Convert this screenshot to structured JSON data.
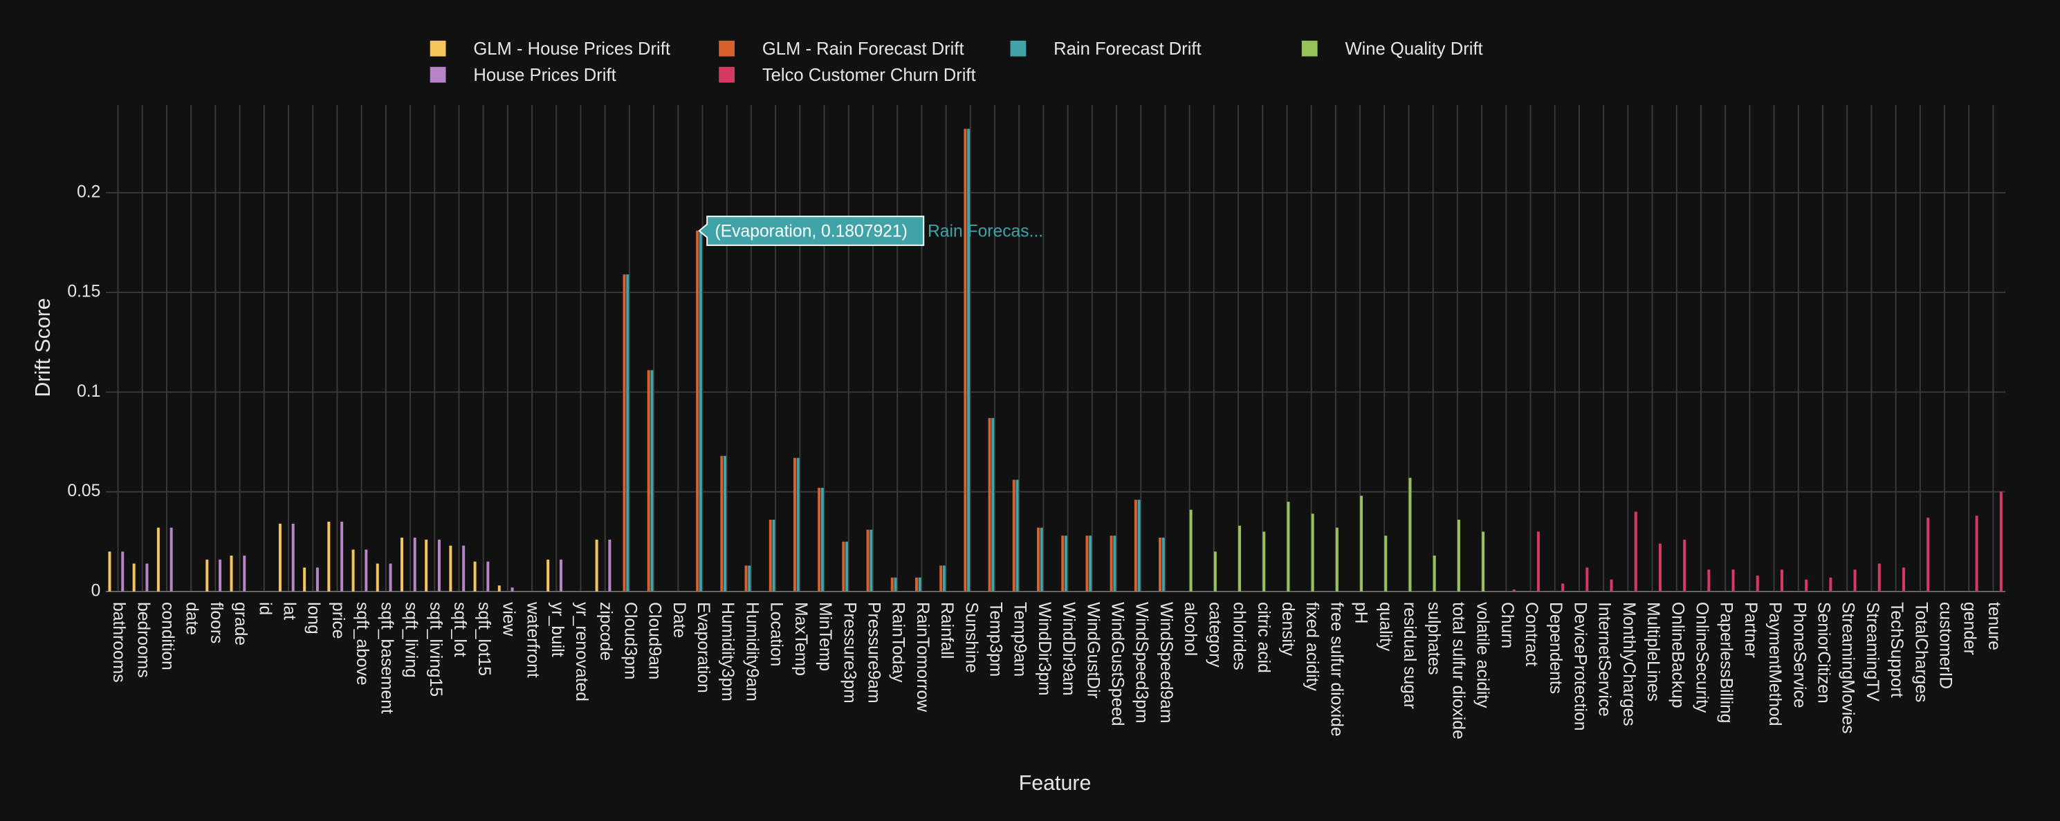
{
  "chart_data": {
    "type": "bar",
    "x_label": "Feature",
    "y_label": "Drift Score",
    "categories": [
      "bathrooms",
      "bedrooms",
      "condition",
      "date",
      "floors",
      "grade",
      "id",
      "lat",
      "long",
      "price",
      "sqft_above",
      "sqft_basement",
      "sqft_living",
      "sqft_living15",
      "sqft_lot",
      "sqft_lot15",
      "view",
      "waterfront",
      "yr_built",
      "yr_renovated",
      "zipcode",
      "Cloud3pm",
      "Cloud9am",
      "Date",
      "Evaporation",
      "Humidity3pm",
      "Humidity9am",
      "Location",
      "MaxTemp",
      "MinTemp",
      "Pressure3pm",
      "Pressure9am",
      "RainToday",
      "RainTomorrow",
      "Rainfall",
      "Sunshine",
      "Temp3pm",
      "Temp9am",
      "WindDir3pm",
      "WindDir9am",
      "WindGustDir",
      "WindGustSpeed",
      "WindSpeed3pm",
      "WindSpeed9am",
      "alcohol",
      "category",
      "chlorides",
      "citric acid",
      "density",
      "fixed acidity",
      "free sulfur dioxide",
      "pH",
      "quality",
      "residual sugar",
      "sulphates",
      "total sulfur dioxide",
      "volatile acidity",
      "Churn",
      "Contract",
      "Dependents",
      "DeviceProtection",
      "InternetService",
      "MonthlyCharges",
      "MultipleLines",
      "OnlineBackup",
      "OnlineSecurity",
      "PaperlessBilling",
      "Partner",
      "PaymentMethod",
      "PhoneService",
      "SeniorCitizen",
      "StreamingMovies",
      "StreamingTV",
      "TechSupport",
      "TotalCharges",
      "customerID",
      "gender",
      "tenure"
    ],
    "series": [
      {
        "name": "GLM - House Prices Drift",
        "color": "#f4c55a",
        "values": [
          0.02,
          0.014,
          0.032,
          0,
          0.016,
          0.018,
          0,
          0.034,
          0.012,
          0.035,
          0.021,
          0.014,
          0.027,
          0.026,
          0.023,
          0.015,
          0.003,
          0,
          0.016,
          0,
          0.026,
          null,
          null,
          null,
          null,
          null,
          null,
          null,
          null,
          null,
          null,
          null,
          null,
          null,
          null,
          null,
          null,
          null,
          null,
          null,
          null,
          null,
          null,
          null,
          null,
          null,
          null,
          null,
          null,
          null,
          null,
          null,
          null,
          null,
          null,
          null,
          null,
          null,
          null,
          null,
          null,
          null,
          null,
          null,
          null,
          null,
          null,
          null,
          null,
          null,
          null,
          null,
          null,
          null,
          null,
          null,
          null,
          null
        ]
      },
      {
        "name": "GLM - Rain Forecast Drift",
        "color": "#d9602f",
        "values": [
          null,
          null,
          null,
          null,
          null,
          null,
          null,
          null,
          null,
          null,
          null,
          null,
          null,
          null,
          null,
          null,
          null,
          null,
          null,
          null,
          null,
          0.159,
          0.111,
          0,
          0.181,
          0.068,
          0.013,
          0.036,
          0.067,
          0.052,
          0.025,
          0.031,
          0.007,
          0.007,
          0.013,
          0.232,
          0.087,
          0.056,
          0.032,
          0.028,
          0.028,
          0.028,
          0.046,
          0.027,
          null,
          null,
          null,
          null,
          null,
          null,
          null,
          null,
          null,
          null,
          null,
          null,
          null,
          null,
          null,
          null,
          null,
          null,
          null,
          null,
          null,
          null,
          null,
          null,
          null,
          null,
          null,
          null,
          null,
          null,
          null,
          null,
          null,
          null
        ]
      },
      {
        "name": "Rain Forecast Drift",
        "color": "#3fa3a8",
        "values": [
          null,
          null,
          null,
          null,
          null,
          null,
          null,
          null,
          null,
          null,
          null,
          null,
          null,
          null,
          null,
          null,
          null,
          null,
          null,
          null,
          null,
          0.159,
          0.111,
          0,
          0.1807921,
          0.068,
          0.013,
          0.036,
          0.067,
          0.052,
          0.025,
          0.031,
          0.007,
          0.007,
          0.013,
          0.232,
          0.087,
          0.056,
          0.032,
          0.028,
          0.028,
          0.028,
          0.046,
          0.027,
          null,
          null,
          null,
          null,
          null,
          null,
          null,
          null,
          null,
          null,
          null,
          null,
          null,
          null,
          null,
          null,
          null,
          null,
          null,
          null,
          null,
          null,
          null,
          null,
          null,
          null,
          null,
          null,
          null,
          null,
          null,
          null,
          null,
          null
        ]
      },
      {
        "name": "Wine Quality Drift",
        "color": "#98c15b",
        "values": [
          null,
          null,
          null,
          null,
          null,
          null,
          null,
          null,
          null,
          null,
          null,
          null,
          null,
          null,
          null,
          null,
          null,
          null,
          null,
          null,
          null,
          null,
          null,
          null,
          null,
          null,
          null,
          null,
          null,
          null,
          null,
          null,
          null,
          null,
          null,
          null,
          null,
          null,
          null,
          null,
          null,
          null,
          null,
          null,
          0.041,
          0.02,
          0.033,
          0.03,
          0.045,
          0.039,
          0.032,
          0.048,
          0.028,
          0.057,
          0.018,
          0.036,
          0.03,
          null,
          null,
          null,
          null,
          null,
          null,
          null,
          null,
          null,
          null,
          null,
          null,
          null,
          null,
          null,
          null,
          null,
          null,
          null,
          null,
          null
        ]
      },
      {
        "name": "House Prices Drift",
        "color": "#b784c7",
        "values": [
          0.02,
          0.014,
          0.032,
          0,
          0.016,
          0.018,
          0,
          0.034,
          0.012,
          0.035,
          0.021,
          0.014,
          0.027,
          0.026,
          0.023,
          0.015,
          0.002,
          0,
          0.016,
          0,
          0.026,
          null,
          null,
          null,
          null,
          null,
          null,
          null,
          null,
          null,
          null,
          null,
          null,
          null,
          null,
          null,
          null,
          null,
          null,
          null,
          null,
          null,
          null,
          null,
          null,
          null,
          null,
          null,
          null,
          null,
          null,
          null,
          null,
          null,
          null,
          null,
          null,
          null,
          null,
          null,
          null,
          null,
          null,
          null,
          null,
          null,
          null,
          null,
          null,
          null,
          null,
          null,
          null,
          null,
          null,
          null,
          null,
          null
        ]
      },
      {
        "name": "Telco Customer Churn Drift",
        "color": "#d63a63",
        "values": [
          null,
          null,
          null,
          null,
          null,
          null,
          null,
          null,
          null,
          null,
          null,
          null,
          null,
          null,
          null,
          null,
          null,
          null,
          null,
          null,
          null,
          null,
          null,
          null,
          null,
          null,
          null,
          null,
          null,
          null,
          null,
          null,
          null,
          null,
          null,
          null,
          null,
          null,
          null,
          null,
          null,
          null,
          null,
          null,
          null,
          null,
          null,
          null,
          null,
          null,
          null,
          null,
          null,
          null,
          null,
          null,
          null,
          0.001,
          0.03,
          0.004,
          0.012,
          0.006,
          0.04,
          0.024,
          0.026,
          0.011,
          0.011,
          0.008,
          0.011,
          0.006,
          0.007,
          0.011,
          0.014,
          0.012,
          0.037,
          0,
          0.038,
          0.05
        ]
      }
    ],
    "ylim": [
      0,
      0.244
    ],
    "yticks": [
      0,
      0.05,
      0.1,
      0.15,
      0.2
    ],
    "grid": true,
    "legend": "top",
    "tooltip": {
      "text": "(Evaporation, 0.1807921)",
      "series_label": "Rain Forecas..."
    }
  }
}
